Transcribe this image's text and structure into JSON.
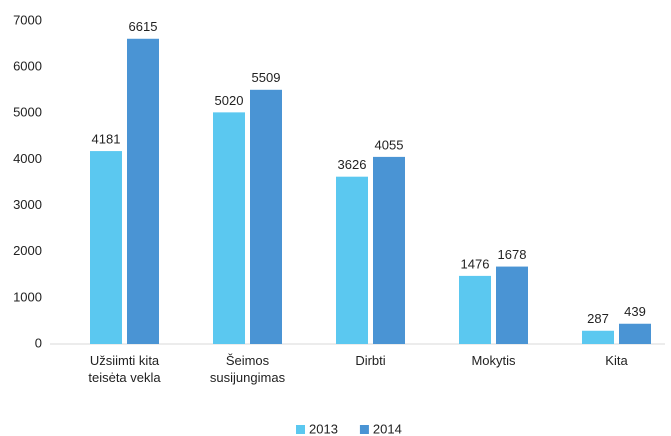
{
  "chart_data": {
    "type": "bar",
    "categories": [
      "Užsiimti kita teisėta vekla",
      "Šeimos susijungimas",
      "Dirbti",
      "Mokytis",
      "Kita"
    ],
    "series": [
      {
        "name": "2013",
        "color": "#5bc8f0",
        "values": [
          4181,
          5020,
          3626,
          1476,
          287
        ]
      },
      {
        "name": "2014",
        "color": "#4a94d4",
        "values": [
          6615,
          5509,
          4055,
          1678,
          439
        ]
      }
    ],
    "ylim": [
      0,
      7000
    ],
    "yticks": [
      0,
      1000,
      2000,
      3000,
      4000,
      5000,
      6000,
      7000
    ],
    "legend": "bottom"
  }
}
